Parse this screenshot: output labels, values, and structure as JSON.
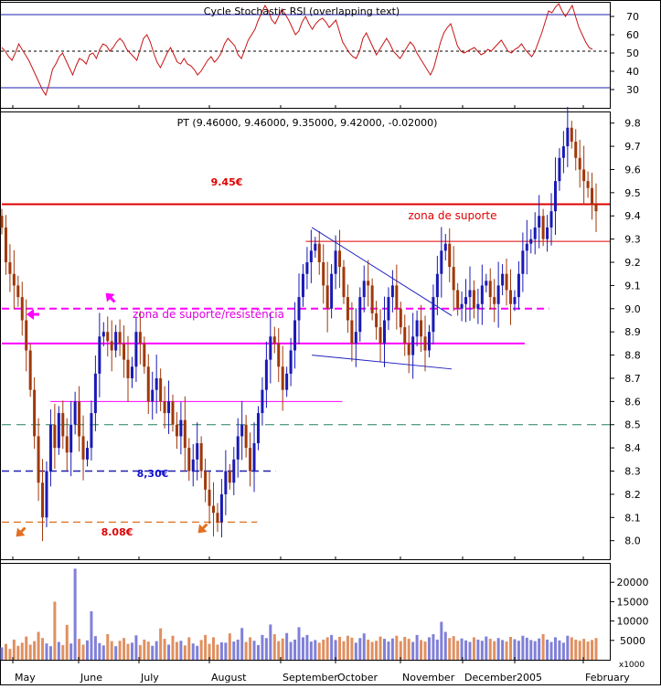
{
  "colors": {
    "up": "#1a1ab4",
    "down": "#a0380a",
    "rsi": "#c81414",
    "volume_up": "#8080d8",
    "volume_down": "#e09060",
    "red_line": "#e00000",
    "magenta": "#ff00ff",
    "navy": "#2020b0",
    "green_dash": "#208060",
    "orange": "#e07020",
    "trend": "#2020c0",
    "text_red": "#e00000",
    "text_blue": "#1010d0",
    "text_magenta": "#e000e0"
  },
  "chart_data": [
    {
      "type": "line",
      "panel": "indicator",
      "title": "Cycle Stochastic RSI (overlapping text, illegible)",
      "y_ticks": [
        30,
        40,
        50,
        60,
        70
      ],
      "y_range": [
        20,
        78
      ],
      "reference_lines": [
        {
          "value": 71,
          "style": "solid",
          "color": "navy"
        },
        {
          "value": 51,
          "style": "dotted",
          "color": "black"
        },
        {
          "value": 31,
          "style": "solid",
          "color": "navy"
        }
      ],
      "values": [
        53,
        51,
        48,
        46,
        50,
        55,
        52,
        49,
        46,
        42,
        38,
        34,
        30,
        27,
        33,
        41,
        44,
        48,
        50,
        46,
        42,
        38,
        43,
        47,
        46,
        44,
        49,
        50,
        47,
        52,
        55,
        54,
        51,
        53,
        56,
        58,
        56,
        52,
        50,
        48,
        46,
        52,
        58,
        60,
        56,
        50,
        45,
        42,
        46,
        50,
        53,
        49,
        45,
        44,
        47,
        44,
        43,
        41,
        38,
        40,
        43,
        46,
        48,
        45,
        47,
        50,
        55,
        58,
        56,
        54,
        49,
        47,
        52,
        57,
        60,
        63,
        68,
        72,
        76,
        73,
        68,
        66,
        70,
        74,
        71,
        68,
        64,
        60,
        62,
        67,
        70,
        66,
        63,
        66,
        68,
        69,
        67,
        64,
        66,
        68,
        62,
        56,
        53,
        50,
        48,
        47,
        51,
        58,
        61,
        57,
        53,
        49,
        52,
        55,
        58,
        55,
        51,
        49,
        47,
        50,
        53,
        56,
        54,
        50,
        47,
        44,
        41,
        38,
        42,
        49,
        56,
        61,
        64,
        66,
        60,
        54,
        51,
        50,
        51,
        52,
        53,
        51,
        49,
        50,
        52,
        51,
        53,
        55,
        57,
        54,
        51,
        50,
        52,
        53,
        55,
        52,
        50,
        48,
        51,
        56,
        61,
        67,
        73,
        72,
        75,
        77,
        73,
        70,
        73,
        76,
        70,
        64,
        60,
        56,
        53,
        52
      ]
    },
    {
      "type": "candlestick",
      "panel": "price",
      "title": "PT (9.46000, 9.46000, 9.35000, 9.42000, -0.02000)",
      "x_ticks": [
        "May",
        "June",
        "July",
        "August",
        "September",
        "October",
        "November",
        "December",
        "2005",
        "February"
      ],
      "y_ticks": [
        8.0,
        8.1,
        8.2,
        8.3,
        8.4,
        8.5,
        8.6,
        8.7,
        8.8,
        8.9,
        9.0,
        9.1,
        9.2,
        9.3,
        9.4,
        9.5,
        9.6,
        9.7,
        9.8
      ],
      "y_range": [
        7.92,
        9.85
      ],
      "closes": [
        9.35,
        9.2,
        9.15,
        9.1,
        9.05,
        8.95,
        8.82,
        8.65,
        8.45,
        8.25,
        8.1,
        8.3,
        8.5,
        8.4,
        8.55,
        8.45,
        8.38,
        8.5,
        8.6,
        8.45,
        8.35,
        8.4,
        8.55,
        8.72,
        8.88,
        8.9,
        8.86,
        8.82,
        8.9,
        8.85,
        8.78,
        8.7,
        8.75,
        8.9,
        8.85,
        8.75,
        8.6,
        8.65,
        8.7,
        8.6,
        8.55,
        8.6,
        8.5,
        8.45,
        8.52,
        8.4,
        8.3,
        8.35,
        8.42,
        8.3,
        8.22,
        8.15,
        8.12,
        8.08,
        8.2,
        8.3,
        8.25,
        8.35,
        8.45,
        8.5,
        8.4,
        8.3,
        8.42,
        8.55,
        8.65,
        8.78,
        8.88,
        8.85,
        8.75,
        8.65,
        8.72,
        8.82,
        8.95,
        9.05,
        9.15,
        9.2,
        9.25,
        9.28,
        9.2,
        9.1,
        9.0,
        9.15,
        9.25,
        9.18,
        9.05,
        8.95,
        8.85,
        8.9,
        9.05,
        9.12,
        9.1,
        8.98,
        8.92,
        8.85,
        8.95,
        9.05,
        9.1,
        9.0,
        8.92,
        8.85,
        8.8,
        8.88,
        8.95,
        8.88,
        8.82,
        8.9,
        9.05,
        9.15,
        9.25,
        9.28,
        9.18,
        9.08,
        9.0,
        9.02,
        9.05,
        9.08,
        9.0,
        9.02,
        9.1,
        9.12,
        9.05,
        9.02,
        9.1,
        9.15,
        9.08,
        9.02,
        9.05,
        9.15,
        9.25,
        9.28,
        9.3,
        9.35,
        9.4,
        9.3,
        9.35,
        9.42,
        9.55,
        9.65,
        9.7,
        9.78,
        9.72,
        9.65,
        9.6,
        9.55,
        9.52,
        9.45,
        9.42
      ],
      "horizontal_lines": [
        {
          "value": 9.45,
          "color": "red_line",
          "style": "solid",
          "x_from": 0.0,
          "x_to": 1.0
        },
        {
          "value": 9.29,
          "color": "red_line",
          "style": "thin",
          "x_from": 0.5,
          "x_to": 1.0
        },
        {
          "value": 9.0,
          "color": "magenta",
          "style": "dashed",
          "x_from": 0.0,
          "x_to": 0.9
        },
        {
          "value": 8.85,
          "color": "magenta",
          "style": "solid",
          "x_from": 0.0,
          "x_to": 0.86
        },
        {
          "value": 8.6,
          "color": "magenta",
          "style": "thin",
          "x_from": 0.08,
          "x_to": 0.56
        },
        {
          "value": 8.5,
          "color": "green_dash",
          "style": "dashed",
          "x_from": 0.0,
          "x_to": 1.0
        },
        {
          "value": 8.3,
          "color": "navy",
          "style": "dashed",
          "x_from": 0.0,
          "x_to": 0.45
        },
        {
          "value": 8.08,
          "color": "orange",
          "style": "dashed",
          "x_from": 0.0,
          "x_to": 0.42
        }
      ],
      "trendlines": [
        {
          "from": [
            0.51,
            9.35
          ],
          "to": [
            0.74,
            8.97
          ]
        },
        {
          "from": [
            0.51,
            8.8
          ],
          "to": [
            0.74,
            8.74
          ]
        }
      ]
    },
    {
      "type": "bar",
      "panel": "volume",
      "y_ticks": [
        5000,
        10000,
        15000,
        20000
      ],
      "y_range": [
        0,
        25000
      ],
      "unit_label": "x1000",
      "values": [
        3200,
        4100,
        2800,
        5200,
        3600,
        4400,
        6000,
        3900,
        4800,
        7200,
        5600,
        4200,
        3500,
        15000,
        4600,
        3800,
        9000,
        4200,
        23500,
        5400,
        3900,
        5000,
        12500,
        6100,
        4300,
        3700,
        6600,
        4800,
        3500,
        4900,
        5600,
        4100,
        4400,
        6300,
        3800,
        5200,
        4700,
        3600,
        4800,
        8100,
        5400,
        3900,
        6200,
        4600,
        4900,
        3700,
        5800,
        4200,
        3600,
        5100,
        6400,
        4100,
        5800,
        3900,
        4500,
        4400,
        6800,
        4700,
        5200,
        8200,
        4600,
        5800,
        4900,
        3800,
        6400,
        5600,
        9100,
        6600,
        4800,
        5500,
        6900,
        4600,
        5200,
        8400,
        5800,
        6400,
        4700,
        5100,
        4400,
        5200,
        5800,
        6400,
        5100,
        5900,
        4800,
        6200,
        5700,
        4400,
        5600,
        6800,
        5200,
        4600,
        4900,
        6000,
        5400,
        4700,
        5500,
        6200,
        4800,
        5900,
        5400,
        4600,
        6400,
        5100,
        4700,
        5800,
        6600,
        5200,
        9800,
        7200,
        5600,
        6100,
        4900,
        5500,
        5000,
        4600,
        5800,
        5200,
        4900,
        6000,
        5400,
        4800,
        5600,
        5100,
        4700,
        5900,
        5300,
        4900,
        6200,
        5700,
        5100,
        4800,
        5500,
        6600,
        5200,
        4600,
        5800,
        5000,
        4400,
        6200,
        5800,
        5200,
        4900,
        5400,
        4700,
        5100,
        5600
      ]
    }
  ],
  "price_title": "PT (9.46000, 9.46000, 9.35000, 9.42000, -0.02000)",
  "indicator_title": "Cycle Stochastic RSI (overlapping text)",
  "annotations": {
    "level_945": "9.45€",
    "zona_suporte": "zona de suporte",
    "zona_sup_res": "zona de suporte/resistência",
    "level_830": "8,30€",
    "level_808": "8.08€",
    "volume_unit": "x1000"
  },
  "months": [
    "May",
    "June",
    "July",
    "August",
    "September",
    "October",
    "November",
    "December",
    "2005",
    "February"
  ]
}
